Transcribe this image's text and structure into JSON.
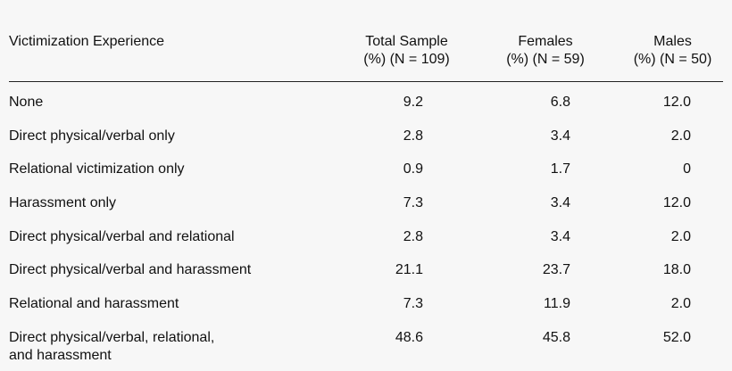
{
  "table": {
    "headers": {
      "label": "Victimization Experience",
      "total": [
        "Total Sample",
        "(%) (N = 109)"
      ],
      "females": [
        "Females",
        "(%) (N = 59)"
      ],
      "males": [
        "Males",
        "(%) (N = 50)"
      ]
    },
    "rows": [
      {
        "label": [
          "None"
        ],
        "total": "9.2",
        "females": "6.8",
        "males": "12.0"
      },
      {
        "label": [
          "Direct physical/verbal only"
        ],
        "total": "2.8",
        "females": "3.4",
        "males": "2.0"
      },
      {
        "label": [
          "Relational victimization only"
        ],
        "total": "0.9",
        "females": "1.7",
        "males": "0"
      },
      {
        "label": [
          "Harassment only"
        ],
        "total": "7.3",
        "females": "3.4",
        "males": "12.0"
      },
      {
        "label": [
          "Direct physical/verbal and relational"
        ],
        "total": "2.8",
        "females": "3.4",
        "males": "2.0"
      },
      {
        "label": [
          "Direct physical/verbal and harassment"
        ],
        "total": "21.1",
        "females": "23.7",
        "males": "18.0"
      },
      {
        "label": [
          "Relational and harassment"
        ],
        "total": "7.3",
        "females": "11.9",
        "males": "2.0"
      },
      {
        "label": [
          "Direct physical/verbal, relational,",
          "and harassment"
        ],
        "total": "48.6",
        "females": "45.8",
        "males": "52.0"
      }
    ]
  }
}
